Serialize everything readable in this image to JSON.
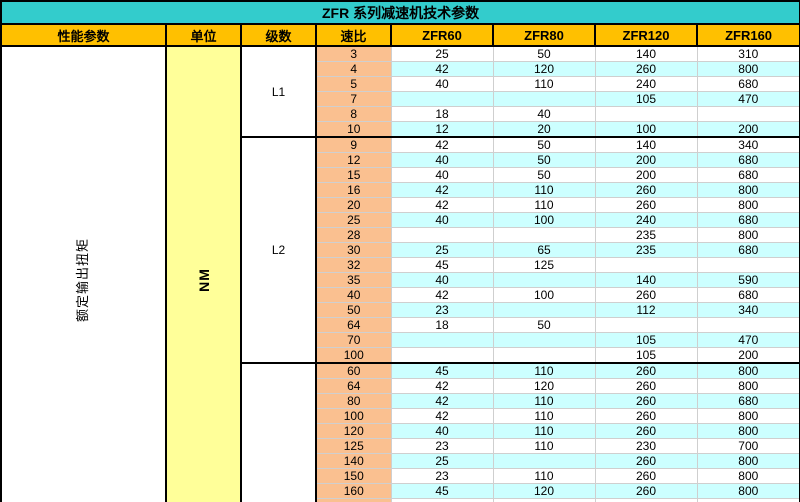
{
  "title": "ZFR 系列减速机技术参数",
  "columns": [
    "性能参数",
    "单位",
    "级数",
    "速比",
    "ZFR60",
    "ZFR80",
    "ZFR120",
    "ZFR160"
  ],
  "left": {
    "performance_param": "额定输出扭矩",
    "unit": "NM"
  },
  "sections": [
    {
      "label": "L1",
      "rows": [
        {
          "ratio": "3",
          "values": [
            "25",
            "50",
            "140",
            "310"
          ],
          "shaded": false
        },
        {
          "ratio": "4",
          "values": [
            "42",
            "120",
            "260",
            "800"
          ],
          "shaded": true
        },
        {
          "ratio": "5",
          "values": [
            "40",
            "110",
            "240",
            "680"
          ],
          "shaded": false
        },
        {
          "ratio": "7",
          "values": [
            "",
            "",
            "105",
            "470"
          ],
          "shaded": true
        },
        {
          "ratio": "8",
          "values": [
            "18",
            "40",
            "",
            ""
          ],
          "shaded": false
        },
        {
          "ratio": "10",
          "values": [
            "12",
            "20",
            "100",
            "200"
          ],
          "shaded": true
        }
      ]
    },
    {
      "label": "L2",
      "rows": [
        {
          "ratio": "9",
          "values": [
            "42",
            "50",
            "140",
            "340"
          ],
          "shaded": false
        },
        {
          "ratio": "12",
          "values": [
            "40",
            "50",
            "200",
            "680"
          ],
          "shaded": true
        },
        {
          "ratio": "15",
          "values": [
            "40",
            "50",
            "200",
            "680"
          ],
          "shaded": false
        },
        {
          "ratio": "16",
          "values": [
            "42",
            "110",
            "260",
            "800"
          ],
          "shaded": true
        },
        {
          "ratio": "20",
          "values": [
            "42",
            "110",
            "260",
            "800"
          ],
          "shaded": false
        },
        {
          "ratio": "25",
          "values": [
            "40",
            "100",
            "240",
            "680"
          ],
          "shaded": true
        },
        {
          "ratio": "28",
          "values": [
            "",
            "",
            "235",
            "800"
          ],
          "shaded": false
        },
        {
          "ratio": "30",
          "values": [
            "25",
            "65",
            "235",
            "680"
          ],
          "shaded": true
        },
        {
          "ratio": "32",
          "values": [
            "45",
            "125",
            "",
            ""
          ],
          "shaded": false
        },
        {
          "ratio": "35",
          "values": [
            "40",
            "",
            "140",
            "590"
          ],
          "shaded": true
        },
        {
          "ratio": "40",
          "values": [
            "42",
            "100",
            "260",
            "680"
          ],
          "shaded": false
        },
        {
          "ratio": "50",
          "values": [
            "23",
            "",
            "112",
            "340"
          ],
          "shaded": true
        },
        {
          "ratio": "64",
          "values": [
            "18",
            "50",
            "",
            ""
          ],
          "shaded": false
        },
        {
          "ratio": "70",
          "values": [
            "",
            "",
            "105",
            "470"
          ],
          "shaded": true
        },
        {
          "ratio": "100",
          "values": [
            "",
            "",
            "105",
            "200"
          ],
          "shaded": false
        }
      ]
    },
    {
      "label": "",
      "rows": [
        {
          "ratio": "60",
          "values": [
            "45",
            "110",
            "260",
            "800"
          ],
          "shaded": true
        },
        {
          "ratio": "64",
          "values": [
            "42",
            "120",
            "260",
            "800"
          ],
          "shaded": false
        },
        {
          "ratio": "80",
          "values": [
            "42",
            "110",
            "260",
            "680"
          ],
          "shaded": true
        },
        {
          "ratio": "100",
          "values": [
            "42",
            "110",
            "260",
            "800"
          ],
          "shaded": false
        },
        {
          "ratio": "120",
          "values": [
            "40",
            "110",
            "260",
            "800"
          ],
          "shaded": true
        },
        {
          "ratio": "125",
          "values": [
            "23",
            "110",
            "230",
            "700"
          ],
          "shaded": false
        },
        {
          "ratio": "140",
          "values": [
            "25",
            "",
            "260",
            "800"
          ],
          "shaded": true
        },
        {
          "ratio": "150",
          "values": [
            "23",
            "110",
            "260",
            "800"
          ],
          "shaded": false
        },
        {
          "ratio": "160",
          "values": [
            "45",
            "120",
            "260",
            "800"
          ],
          "shaded": true
        }
      ]
    }
  ],
  "colors": {
    "title_bg": "#33CCCC",
    "header_bg": "#FFC000",
    "unit_bg": "#FFFF99",
    "ratio_bg": "#FAC090",
    "band_bg": "#CCFFFF",
    "border_black": "#000000",
    "gridline": "#CFCFCF"
  }
}
